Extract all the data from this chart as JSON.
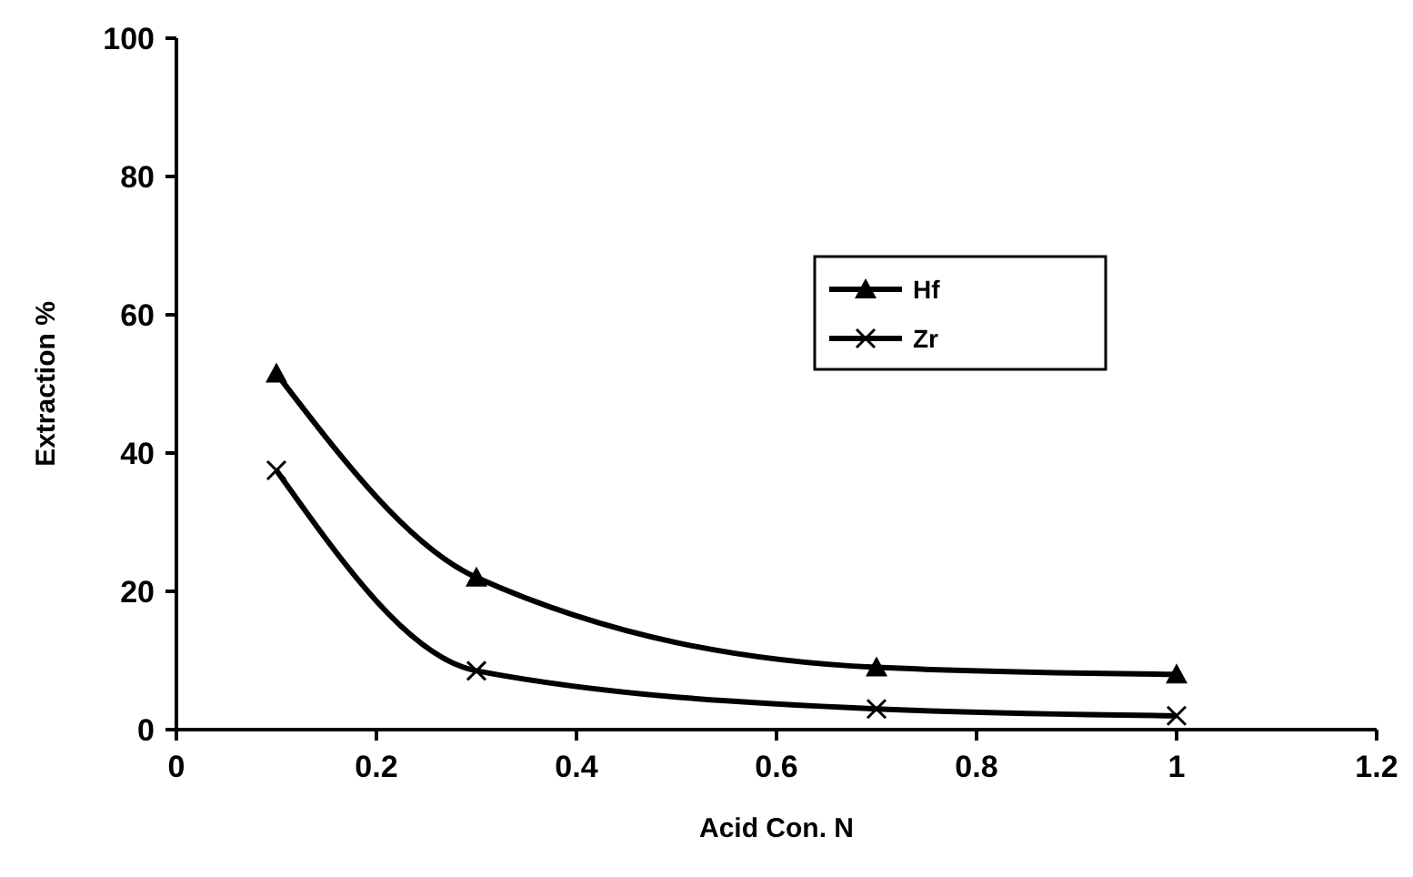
{
  "chart_data": {
    "type": "line",
    "xlabel": "Acid Con. N",
    "ylabel": "Extraction %",
    "x": [
      0.1,
      0.3,
      0.7,
      1
    ],
    "series": [
      {
        "name": "Hf",
        "color": "#000000",
        "marker": "triangle",
        "values": [
          51.5,
          22,
          9,
          8
        ]
      },
      {
        "name": "Zr",
        "color": "#000000",
        "marker": "cross",
        "values": [
          37.5,
          8.5,
          3,
          2
        ]
      }
    ],
    "xlim": [
      0,
      1.2
    ],
    "xticks": [
      0,
      0.2,
      0.4,
      0.6,
      0.8,
      1,
      1.2
    ],
    "ylim": [
      0,
      100
    ],
    "yticks": [
      0,
      20,
      40,
      60,
      80,
      100
    ],
    "grid": false,
    "legend": "right"
  }
}
